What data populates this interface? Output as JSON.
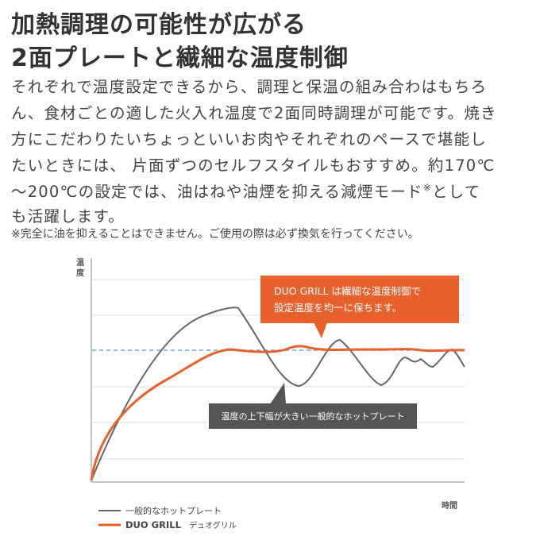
{
  "header": {
    "title_lines": [
      "加熱調理の可能性が広がる",
      "2面プレートと繊細な温度制御"
    ]
  },
  "paragraph": {
    "lines": [
      "それぞれで温度設定できるから、調理と保温の組み合わはもちろ",
      "ん、食材ごとの適した火入れ温度で2面同時調理が可能です。焼き",
      "方にこだわりたいちょっといいお肉やそれぞれのペースで堪能し",
      "たいときには、 片面ずつのセルフスタイルもおすすめ。約170℃",
      [
        "〜200℃の設定では、油はねや油煙を抑える減煙モード",
        "※",
        "として"
      ],
      "も活躍します。"
    ],
    "note": "※完全に油を抑えることはできません。ご使用の際は必ず換気を行ってください。"
  },
  "diagram": {
    "y_axis_label": "温度",
    "x_axis_label": "時間",
    "callouts": [
      [
        "DUO GRILL は繊細な温度制御で",
        "設定温度を均一に保ちます。"
      ],
      "温度の上下幅が大きい一般的なホットプレート"
    ],
    "legend": [
      {
        "name": "一般的なホットプレート"
      },
      {
        "name": "DUO GRILL",
        "sub": "デュオグリル"
      }
    ]
  }
}
